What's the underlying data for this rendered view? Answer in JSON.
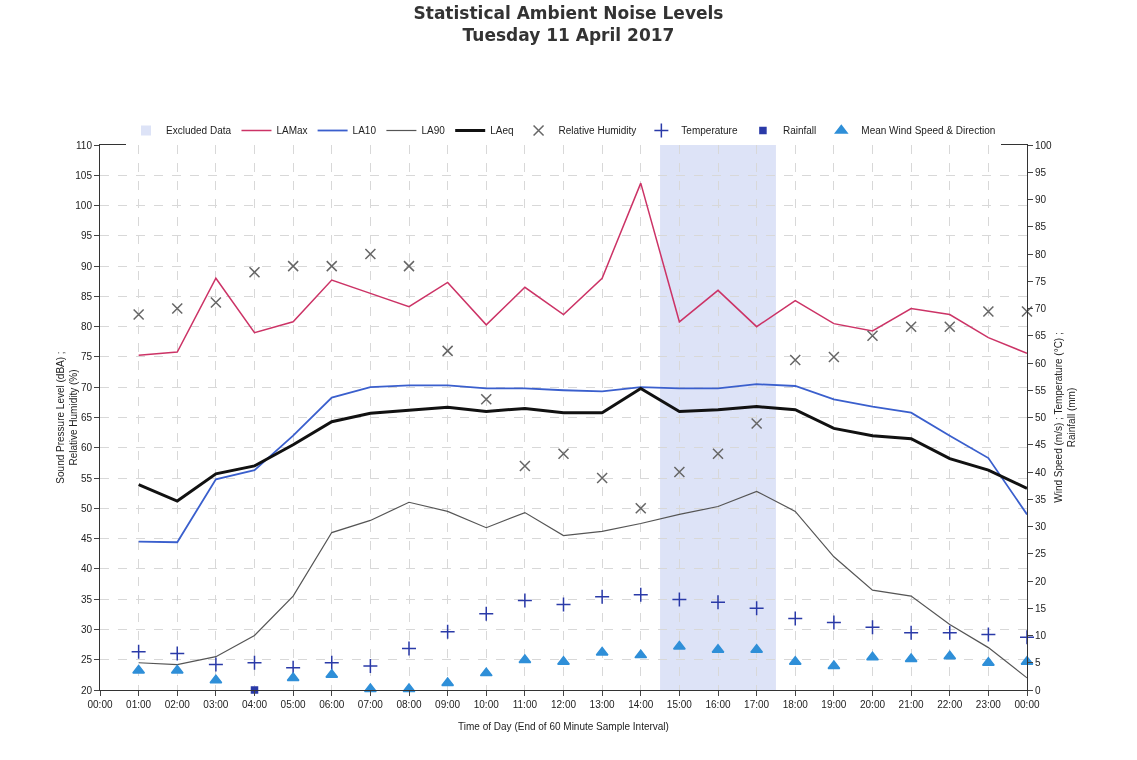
{
  "chart_data": {
    "type": "line",
    "title": "Statistical Ambient Noise Levels",
    "subtitle": "Tuesday 11 April 2017",
    "xlabel": "Time of Day (End of 60 Minute Sample Interval)",
    "ylabel": "Sound Pressure Level (dBA) ;\nRelative Humidity (%)",
    "y2label": "Wind Speed (m/s) ; Temperature (°C) ;\nRainfall (mm)",
    "x": [
      1,
      2,
      3,
      4,
      5,
      6,
      7,
      8,
      9,
      10,
      11,
      12,
      13,
      14,
      15,
      16,
      17,
      18,
      19,
      20,
      21,
      22,
      23,
      24
    ],
    "series": [
      {
        "name": "LAMax",
        "color": "#cc3366",
        "marker": "none",
        "values": [
          75.3,
          75.8,
          88,
          79,
          80.8,
          87.7,
          85.5,
          83.3,
          87.3,
          80.3,
          86.5,
          82,
          88,
          103.7,
          80.8,
          86,
          80,
          84.3,
          80.5,
          79.3,
          83,
          82,
          78.2,
          75.6
        ]
      },
      {
        "name": "LA10",
        "color": "#3a5fcd",
        "marker": "none",
        "values": [
          44.5,
          44.4,
          54.8,
          56.3,
          62,
          68.3,
          70,
          70.3,
          70.3,
          69.8,
          69.8,
          69.5,
          69.3,
          70,
          69.8,
          69.8,
          70.5,
          70.2,
          68,
          66.8,
          65.8,
          62,
          58.3,
          49
        ]
      },
      {
        "name": "LA90",
        "color": "#555555",
        "marker": "none",
        "values": [
          24.5,
          24.2,
          25.5,
          29,
          35.5,
          46,
          48,
          51,
          49.5,
          46.8,
          49.3,
          45.5,
          46.2,
          47.5,
          49,
          50.3,
          52.8,
          49.5,
          42,
          36.5,
          35.5,
          30.8,
          27,
          22
        ]
      },
      {
        "name": "LAeq",
        "color": "#111111",
        "marker": "none",
        "values": [
          53.9,
          51.2,
          55.7,
          57,
          60.5,
          64.3,
          65.7,
          66.2,
          66.7,
          66,
          66.5,
          65.8,
          65.8,
          69.8,
          66,
          66.3,
          66.8,
          66.3,
          63.2,
          62,
          61.5,
          58.2,
          56.3,
          53.3
        ]
      },
      {
        "name": "Relative Humidity",
        "type": "scatter",
        "color": "#666666",
        "marker": "cross",
        "values": [
          82,
          83,
          84,
          89,
          90,
          90,
          92,
          90,
          76,
          68,
          57,
          59,
          55,
          50,
          56,
          59,
          64,
          74.5,
          75,
          78.5,
          80,
          80,
          82.5,
          82.5
        ]
      },
      {
        "name": "Temperature",
        "type": "scatter",
        "axis": "y2",
        "color": "#2a3aa8",
        "marker": "cross",
        "values": [
          7,
          6.7,
          4.7,
          5,
          4.1,
          5,
          4.4,
          7.6,
          10.7,
          14,
          16.4,
          15.7,
          17.1,
          17.5,
          16.6,
          16.1,
          15,
          13.1,
          12.4,
          11.5,
          10.5,
          10.5,
          10.2,
          9.7
        ]
      },
      {
        "name": "Rainfall",
        "type": "scatter",
        "axis": "y2",
        "color": "#2a3aa8",
        "marker": "square",
        "values": [
          null,
          null,
          null,
          0,
          null,
          null,
          null,
          null,
          null,
          null,
          null,
          null,
          null,
          null,
          null,
          null,
          null,
          null,
          null,
          null,
          null,
          null,
          null,
          null
        ]
      },
      {
        "name": "Mean Wind Speed & Direction",
        "type": "scatter",
        "axis": "y2",
        "color": "#2f8fd8",
        "marker": "triangle",
        "values": [
          3.6,
          3.6,
          1.8,
          null,
          2.2,
          2.8,
          0.2,
          0.2,
          1.3,
          3.1,
          5.5,
          5.2,
          6.9,
          6.4,
          8,
          7.4,
          7.4,
          5.2,
          4.4,
          6,
          5.7,
          6.2,
          5,
          5.2
        ]
      }
    ],
    "bands": [
      {
        "axis": "x",
        "from": 14.5,
        "to": 17.5,
        "label": "Excluded Data",
        "color": "#dde3f7"
      }
    ],
    "xlim": [
      0,
      24
    ],
    "xticks": [
      {
        "value": 0,
        "label": "00:00"
      },
      {
        "value": 1,
        "label": "01:00"
      },
      {
        "value": 2,
        "label": "02:00"
      },
      {
        "value": 3,
        "label": "03:00"
      },
      {
        "value": 4,
        "label": "04:00"
      },
      {
        "value": 5,
        "label": "05:00"
      },
      {
        "value": 6,
        "label": "06:00"
      },
      {
        "value": 7,
        "label": "07:00"
      },
      {
        "value": 8,
        "label": "08:00"
      },
      {
        "value": 9,
        "label": "09:00"
      },
      {
        "value": 10,
        "label": "10:00"
      },
      {
        "value": 11,
        "label": "11:00"
      },
      {
        "value": 12,
        "label": "12:00"
      },
      {
        "value": 13,
        "label": "13:00"
      },
      {
        "value": 14,
        "label": "14:00"
      },
      {
        "value": 15,
        "label": "15:00"
      },
      {
        "value": 16,
        "label": "16:00"
      },
      {
        "value": 17,
        "label": "17:00"
      },
      {
        "value": 18,
        "label": "18:00"
      },
      {
        "value": 19,
        "label": "19:00"
      },
      {
        "value": 20,
        "label": "20:00"
      },
      {
        "value": 21,
        "label": "21:00"
      },
      {
        "value": 22,
        "label": "22:00"
      },
      {
        "value": 23,
        "label": "23:00"
      },
      {
        "value": 24,
        "label": "00:00"
      }
    ],
    "ylim": [
      20,
      110
    ],
    "yticks": [
      20,
      25,
      30,
      35,
      40,
      45,
      50,
      55,
      60,
      65,
      70,
      75,
      80,
      85,
      90,
      95,
      100,
      105,
      110
    ],
    "y2lim": [
      0,
      100
    ],
    "y2ticks": [
      0,
      5,
      10,
      15,
      20,
      25,
      30,
      35,
      40,
      45,
      50,
      55,
      60,
      65,
      70,
      75,
      80,
      85,
      90,
      95,
      100
    ],
    "grid": true,
    "legend": "top",
    "line_style": "solid"
  }
}
